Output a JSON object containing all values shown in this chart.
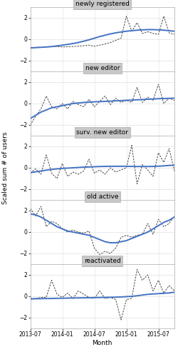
{
  "panels": [
    {
      "title": "newly registered",
      "raw_y": [
        -0.85,
        -0.75,
        -0.75,
        -0.72,
        -0.7,
        -0.68,
        -0.72,
        -0.7,
        -0.68,
        -0.65,
        -0.6,
        -0.55,
        -0.65,
        -0.55,
        -0.45,
        -0.3,
        -0.1,
        0.1,
        2.15,
        0.75,
        1.55,
        0.55,
        0.7,
        0.55,
        0.45,
        2.15,
        0.6,
        0.45
      ],
      "loess_y": [
        -0.8,
        -0.78,
        -0.75,
        -0.72,
        -0.68,
        -0.62,
        -0.55,
        -0.48,
        -0.4,
        -0.3,
        -0.18,
        -0.05,
        0.1,
        0.25,
        0.38,
        0.5,
        0.6,
        0.68,
        0.75,
        0.8,
        0.85,
        0.88,
        0.9,
        0.9,
        0.88,
        0.85,
        0.8,
        0.75
      ],
      "ylim": [
        -3,
        3
      ]
    },
    {
      "title": "new editor",
      "raw_y": [
        -2.0,
        -1.2,
        -0.5,
        0.7,
        -0.3,
        -0.5,
        0.0,
        -0.5,
        0.2,
        -0.1,
        -0.3,
        0.4,
        -0.3,
        0.2,
        0.7,
        -0.1,
        0.5,
        0.1,
        0.3,
        0.1,
        1.5,
        0.1,
        0.6,
        0.3,
        1.8,
        0.0,
        0.5,
        0.3
      ],
      "loess_y": [
        -1.4,
        -1.1,
        -0.8,
        -0.6,
        -0.4,
        -0.3,
        -0.2,
        -0.1,
        0.0,
        0.05,
        0.1,
        0.13,
        0.16,
        0.18,
        0.2,
        0.22,
        0.25,
        0.28,
        0.3,
        0.32,
        0.35,
        0.37,
        0.4,
        0.42,
        0.45,
        0.47,
        0.48,
        0.5
      ],
      "ylim": [
        -3,
        3
      ]
    },
    {
      "title": "surv. new editor",
      "raw_y": [
        -0.5,
        -0.1,
        -0.6,
        1.2,
        -0.5,
        -1.0,
        0.4,
        -0.8,
        -0.4,
        -0.6,
        -0.3,
        0.8,
        -0.5,
        -0.2,
        -0.6,
        0.0,
        -0.4,
        -0.2,
        0.0,
        2.1,
        -1.5,
        0.3,
        -0.2,
        -0.8,
        1.4,
        0.5,
        1.8,
        -0.3
      ],
      "loess_y": [
        -0.45,
        -0.38,
        -0.3,
        -0.22,
        -0.15,
        -0.1,
        -0.06,
        -0.03,
        0.0,
        0.03,
        0.06,
        0.08,
        0.1,
        0.12,
        0.13,
        0.14,
        0.14,
        0.14,
        0.14,
        0.13,
        0.12,
        0.12,
        0.12,
        0.13,
        0.15,
        0.18,
        0.22,
        0.25
      ],
      "ylim": [
        -3,
        3
      ]
    },
    {
      "title": "old active",
      "raw_y": [
        2.2,
        1.5,
        2.4,
        0.5,
        1.0,
        0.8,
        0.3,
        0.0,
        0.2,
        0.0,
        -0.1,
        0.1,
        -1.5,
        -2.1,
        -1.8,
        -2.0,
        -1.5,
        -0.5,
        -0.3,
        -0.5,
        -0.3,
        -0.2,
        0.8,
        -0.2,
        1.2,
        0.5,
        0.8,
        1.5
      ],
      "loess_y": [
        1.7,
        1.6,
        1.4,
        1.1,
        0.8,
        0.5,
        0.3,
        0.1,
        0.0,
        -0.1,
        -0.2,
        -0.3,
        -0.5,
        -0.7,
        -0.9,
        -1.0,
        -1.0,
        -0.9,
        -0.8,
        -0.6,
        -0.4,
        -0.2,
        0.0,
        0.3,
        0.6,
        0.9,
        1.1,
        1.4
      ],
      "ylim": [
        -3,
        3
      ]
    },
    {
      "title": "reactivated",
      "raw_y": [
        -0.2,
        -0.2,
        -0.1,
        -0.1,
        1.5,
        0.2,
        -0.1,
        0.3,
        -0.2,
        0.5,
        0.2,
        -0.1,
        -0.2,
        0.5,
        -0.2,
        -0.1,
        -0.3,
        -2.2,
        -0.3,
        -0.2,
        2.5,
        1.5,
        2.0,
        0.5,
        1.5,
        0.3,
        1.0,
        0.5
      ],
      "loess_y": [
        -0.25,
        -0.23,
        -0.22,
        -0.21,
        -0.2,
        -0.19,
        -0.18,
        -0.17,
        -0.16,
        -0.15,
        -0.14,
        -0.13,
        -0.12,
        -0.11,
        -0.1,
        -0.09,
        -0.08,
        -0.06,
        -0.03,
        0.0,
        0.05,
        0.12,
        0.18,
        0.22,
        0.25,
        0.28,
        0.32,
        0.38
      ],
      "ylim": [
        -3,
        3
      ]
    }
  ],
  "n_points": 28,
  "x_ticks": [
    0,
    6,
    12,
    18,
    24
  ],
  "x_tick_labels": [
    "2013-07",
    "2014-01",
    "2014-07",
    "2015-01",
    "2015-07"
  ],
  "vline_x": [
    6,
    12,
    18,
    24
  ],
  "ylabel": "Scaled sum # of users",
  "xlabel": "Month",
  "title_bg_color": "#c8c8c8",
  "plot_bg_color": "#ffffff",
  "line_color": "#4472c4",
  "raw_color": "#444444",
  "title_fontsize": 6.5,
  "tick_fontsize": 5.5,
  "label_fontsize": 6.5,
  "yticks": [
    -2,
    0,
    2
  ]
}
